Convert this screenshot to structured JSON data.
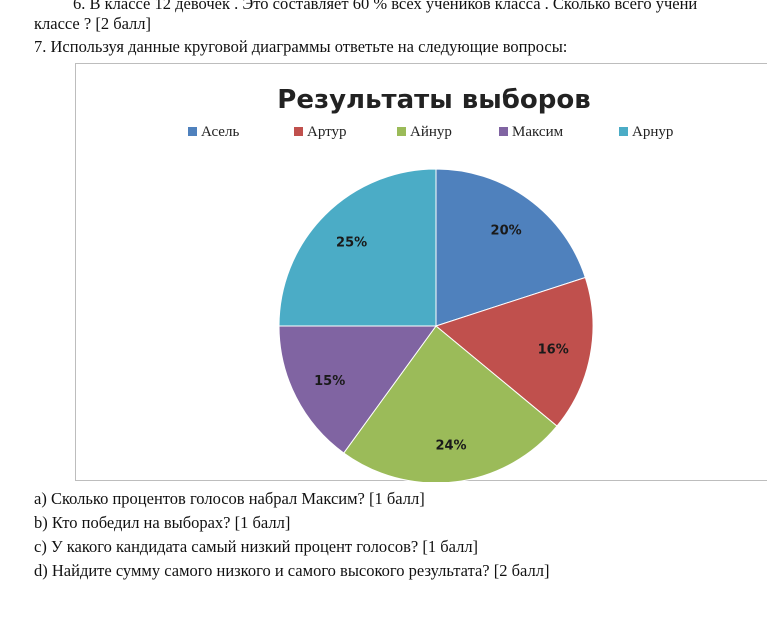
{
  "text": {
    "line1": "6. В классе 12 девочек . Это составляет  60 % всех учеников класса . Сколько всего учени",
    "line2": "классе ? [2 балл]",
    "line3": "7. Используя данные круговой диаграммы ответьте на следующие вопросы:"
  },
  "questions": [
    "a) Сколько процентов голосов набрал  Максим? [1 балл]",
    "b) Кто победил на выборах? [1 балл]",
    "c) У какого кандидата самый низкий процент  голосов? [1 балл]",
    "d) Найдите сумму  самого низкого и самого высокого результата? [2 балл]"
  ],
  "chart_data": {
    "type": "pie",
    "title": "Результаты выборов",
    "legend_position": "top",
    "categories": [
      "Асель",
      "Артур",
      "Айнур",
      "Максим",
      "Арнур"
    ],
    "values": [
      20,
      16,
      24,
      15,
      25
    ],
    "labels": [
      "20%",
      "16%",
      "24%",
      "15%",
      "25%"
    ],
    "colors": [
      "#4f81bd",
      "#c0504d",
      "#9bbb59",
      "#8064a2",
      "#4bacc6"
    ]
  }
}
